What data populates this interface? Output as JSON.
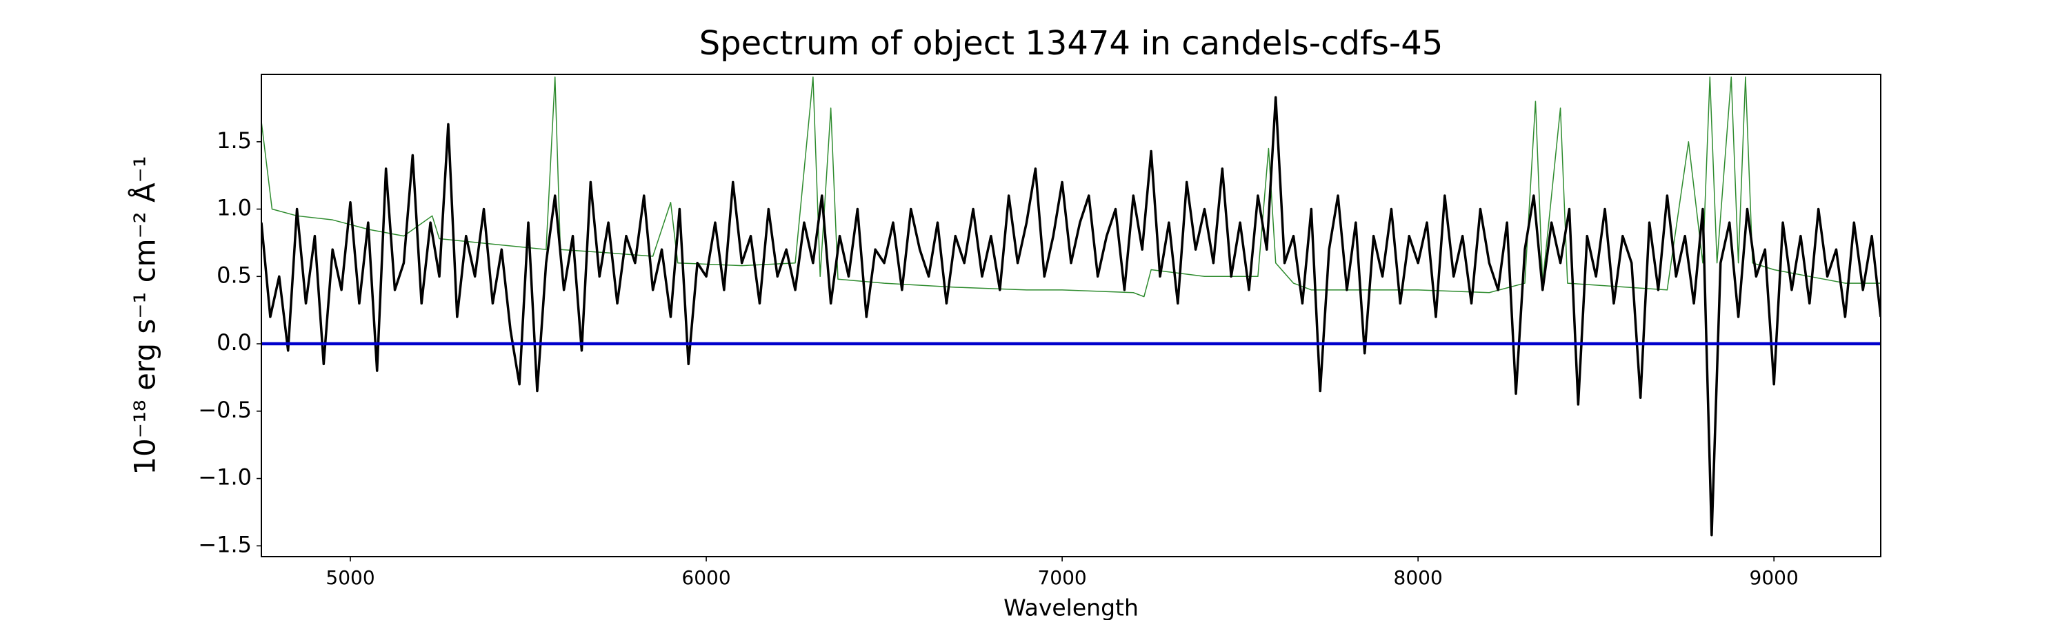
{
  "chart_data": {
    "type": "line",
    "title": "Spectrum of object 13474 in candels-cdfs-45",
    "x_label": "Wavelength",
    "y_label": "10⁻¹⁸ erg s⁻¹ cm⁻² Å⁻¹",
    "xlim": [
      4750,
      9300
    ],
    "ylim": [
      -1.58,
      2.0
    ],
    "xticks": [
      5000,
      6000,
      7000,
      8000,
      9000
    ],
    "yticks": [
      {
        "value": -1.5,
        "label": "−1.5"
      },
      {
        "value": -1.0,
        "label": "−1.0"
      },
      {
        "value": -0.5,
        "label": "−0.5"
      },
      {
        "value": 0.0,
        "label": "0.0"
      },
      0.5,
      {
        "value": 1.0,
        "label": "1.0"
      },
      1.5
    ],
    "grid": false,
    "series": [
      {
        "color": "#2e8b2e",
        "width": 1.5,
        "x": [
          4750,
          4780,
          4850,
          4950,
          5050,
          5150,
          5230,
          5250,
          5400,
          5550,
          5575,
          5590,
          5700,
          5850,
          5900,
          5920,
          6100,
          6250,
          6300,
          6320,
          6350,
          6370,
          6500,
          6700,
          6900,
          7000,
          7200,
          7230,
          7250,
          7400,
          7550,
          7580,
          7600,
          7650,
          7700,
          8000,
          8200,
          8300,
          8330,
          8350,
          8400,
          8420,
          8700,
          8760,
          8800,
          8820,
          8840,
          8880,
          8900,
          8920,
          8940,
          9000,
          9100,
          9200,
          9300
        ],
        "values": [
          1.65,
          1.0,
          0.95,
          0.92,
          0.85,
          0.8,
          0.95,
          0.78,
          0.74,
          0.7,
          1.98,
          0.7,
          0.68,
          0.65,
          1.05,
          0.6,
          0.58,
          0.6,
          1.98,
          0.5,
          1.75,
          0.48,
          0.45,
          0.42,
          0.4,
          0.4,
          0.38,
          0.35,
          0.55,
          0.5,
          0.5,
          1.45,
          0.6,
          0.45,
          0.4,
          0.4,
          0.38,
          0.45,
          1.8,
          0.45,
          1.75,
          0.45,
          0.4,
          1.5,
          0.6,
          1.98,
          0.6,
          1.98,
          0.6,
          1.98,
          0.6,
          0.55,
          0.5,
          0.45,
          0.45
        ]
      },
      {
        "color": "#000000",
        "width": 3.5,
        "x": [
          4750,
          4775,
          4800,
          4825,
          4850,
          4875,
          4900,
          4925,
          4950,
          4975,
          5000,
          5025,
          5050,
          5075,
          5100,
          5125,
          5150,
          5175,
          5200,
          5225,
          5250,
          5275,
          5300,
          5325,
          5350,
          5375,
          5400,
          5425,
          5450,
          5475,
          5500,
          5525,
          5550,
          5575,
          5600,
          5625,
          5650,
          5675,
          5700,
          5725,
          5750,
          5775,
          5800,
          5825,
          5850,
          5875,
          5900,
          5925,
          5950,
          5975,
          6000,
          6025,
          6050,
          6075,
          6100,
          6125,
          6150,
          6175,
          6200,
          6225,
          6250,
          6275,
          6300,
          6325,
          6350,
          6375,
          6400,
          6425,
          6450,
          6475,
          6500,
          6525,
          6550,
          6575,
          6600,
          6625,
          6650,
          6675,
          6700,
          6725,
          6750,
          6775,
          6800,
          6825,
          6850,
          6875,
          6900,
          6925,
          6950,
          6975,
          7000,
          7025,
          7050,
          7075,
          7100,
          7125,
          7150,
          7175,
          7200,
          7225,
          7250,
          7275,
          7300,
          7325,
          7350,
          7375,
          7400,
          7425,
          7450,
          7475,
          7500,
          7525,
          7550,
          7575,
          7600,
          7625,
          7650,
          7675,
          7700,
          7725,
          7750,
          7775,
          7800,
          7825,
          7850,
          7875,
          7900,
          7925,
          7950,
          7975,
          8000,
          8025,
          8050,
          8075,
          8100,
          8125,
          8150,
          8175,
          8200,
          8225,
          8250,
          8275,
          8300,
          8325,
          8350,
          8375,
          8400,
          8425,
          8450,
          8475,
          8500,
          8525,
          8550,
          8575,
          8600,
          8625,
          8650,
          8675,
          8700,
          8725,
          8750,
          8775,
          8800,
          8825,
          8850,
          8875,
          8900,
          8925,
          8950,
          8975,
          9000,
          9025,
          9050,
          9075,
          9100,
          9125,
          9150,
          9175,
          9200,
          9225,
          9250,
          9275,
          9300
        ],
        "values": [
          0.9,
          0.2,
          0.5,
          -0.05,
          1.0,
          0.3,
          0.8,
          -0.15,
          0.7,
          0.4,
          1.05,
          0.3,
          0.9,
          -0.2,
          1.3,
          0.4,
          0.6,
          1.4,
          0.3,
          0.9,
          0.5,
          1.63,
          0.2,
          0.8,
          0.5,
          1.0,
          0.3,
          0.7,
          0.1,
          -0.3,
          0.9,
          -0.35,
          0.6,
          1.1,
          0.4,
          0.8,
          -0.05,
          1.2,
          0.5,
          0.9,
          0.3,
          0.8,
          0.6,
          1.1,
          0.4,
          0.7,
          0.2,
          1.0,
          -0.15,
          0.6,
          0.5,
          0.9,
          0.4,
          1.2,
          0.6,
          0.8,
          0.3,
          1.0,
          0.5,
          0.7,
          0.4,
          0.9,
          0.6,
          1.1,
          0.3,
          0.8,
          0.5,
          1.0,
          0.2,
          0.7,
          0.6,
          0.9,
          0.4,
          1.0,
          0.7,
          0.5,
          0.9,
          0.3,
          0.8,
          0.6,
          1.0,
          0.5,
          0.8,
          0.4,
          1.1,
          0.6,
          0.9,
          1.3,
          0.5,
          0.8,
          1.2,
          0.6,
          0.9,
          1.1,
          0.5,
          0.8,
          1.0,
          0.4,
          1.1,
          0.7,
          1.43,
          0.5,
          0.9,
          0.3,
          1.2,
          0.7,
          1.0,
          0.6,
          1.3,
          0.5,
          0.9,
          0.4,
          1.1,
          0.7,
          1.83,
          0.6,
          0.8,
          0.3,
          1.0,
          -0.35,
          0.7,
          1.1,
          0.4,
          0.9,
          -0.07,
          0.8,
          0.5,
          1.0,
          0.3,
          0.8,
          0.6,
          0.9,
          0.2,
          1.1,
          0.5,
          0.8,
          0.3,
          1.0,
          0.6,
          0.4,
          0.9,
          -0.37,
          0.7,
          1.1,
          0.4,
          0.9,
          0.6,
          1.0,
          -0.45,
          0.8,
          0.5,
          1.0,
          0.3,
          0.8,
          0.6,
          -0.4,
          0.9,
          0.4,
          1.1,
          0.5,
          0.8,
          0.3,
          1.0,
          -1.42,
          0.6,
          0.9,
          0.2,
          1.0,
          0.5,
          0.7,
          -0.3,
          0.9,
          0.4,
          0.8,
          0.3,
          1.0,
          0.5,
          0.7,
          0.2,
          0.9,
          0.4,
          0.8,
          0.2
        ]
      },
      {
        "color": "#0000cc",
        "width": 4.5,
        "x": [
          4750,
          9300
        ],
        "values": [
          0,
          0
        ]
      }
    ]
  }
}
